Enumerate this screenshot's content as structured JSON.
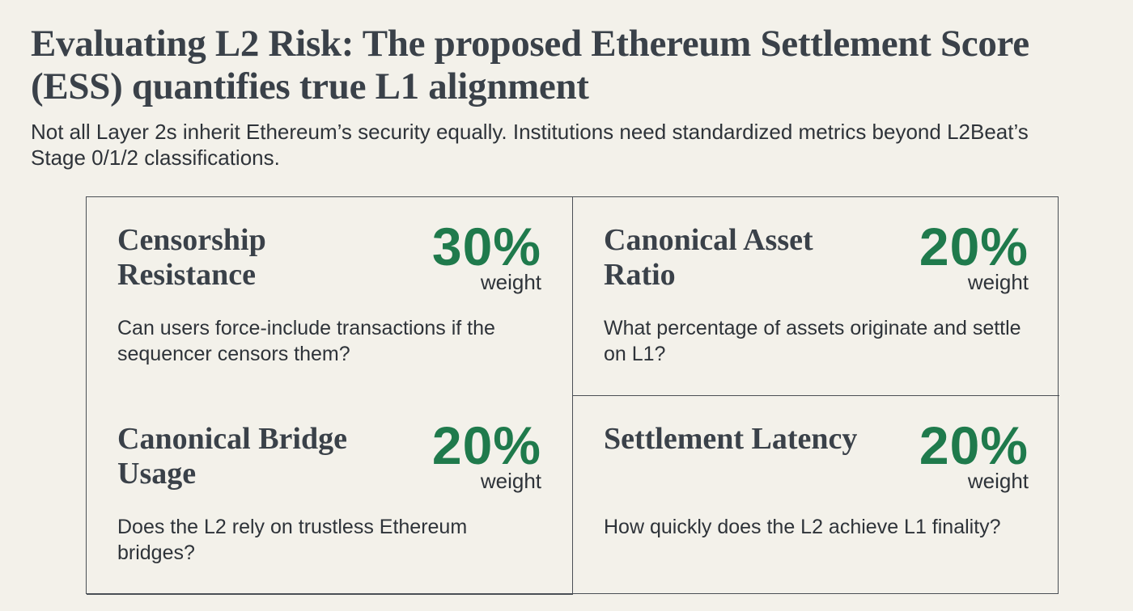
{
  "header": {
    "title": "Evaluating L2 Risk: The proposed Ethereum Settlement Score (ESS) quantifies true L1 alignment",
    "subtitle": "Not all Layer 2s inherit Ethereum’s security equally. Institutions need standardized metrics beyond L2Beat’s Stage 0/1/2 classifications."
  },
  "accent_color": "#1f7a4c",
  "metrics": [
    {
      "title": "Censorship Resistance",
      "weight": "30%",
      "weight_label": "weight",
      "description": "Can users force-include transactions if the sequencer censors them?"
    },
    {
      "title": "Canonical Asset Ratio",
      "weight": "20%",
      "weight_label": "weight",
      "description": "What percentage of assets originate and settle on L1?"
    },
    {
      "title": "Canonical Bridge Usage",
      "weight": "20%",
      "weight_label": "weight",
      "description": "Does the L2 rely on trustless Ethereum bridges?"
    },
    {
      "title": "Settlement Latency",
      "weight": "20%",
      "weight_label": "weight",
      "description": "How quickly does the L2 achieve L1 finality?"
    }
  ]
}
